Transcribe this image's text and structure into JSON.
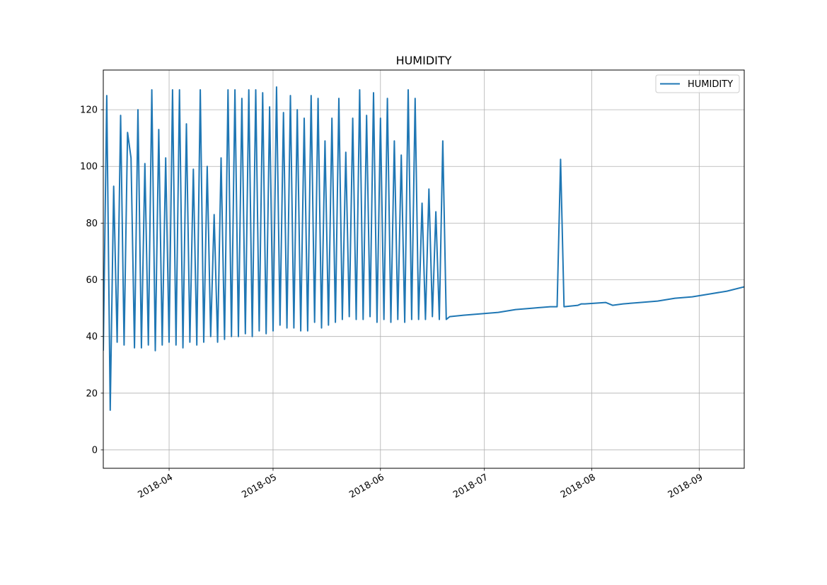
{
  "chart_data": {
    "type": "line",
    "title": "HUMIDITY",
    "xlabel": "",
    "ylabel": "",
    "xlim": [
      "2018-03-13",
      "2018-09-14"
    ],
    "ylim": [
      -6.5,
      134
    ],
    "grid": true,
    "legend": {
      "placement": "top-right",
      "entries": [
        "HUMIDITY"
      ]
    },
    "x_ticks": [
      {
        "date": "2018-04-01",
        "label": "2018-04"
      },
      {
        "date": "2018-05-01",
        "label": "2018-05"
      },
      {
        "date": "2018-06-01",
        "label": "2018-06"
      },
      {
        "date": "2018-07-01",
        "label": "2018-07"
      },
      {
        "date": "2018-08-01",
        "label": "2018-08"
      },
      {
        "date": "2018-09-01",
        "label": "2018-09"
      }
    ],
    "y_ticks": [
      0,
      20,
      40,
      60,
      80,
      100,
      120
    ],
    "series": [
      {
        "name": "HUMIDITY",
        "color": "#1f77b4",
        "x": [
          "2018-03-13",
          "2018-03-14",
          "2018-03-15",
          "2018-03-16",
          "2018-03-17",
          "2018-03-18",
          "2018-03-19",
          "2018-03-20",
          "2018-03-21",
          "2018-03-22",
          "2018-03-23",
          "2018-03-24",
          "2018-03-25",
          "2018-03-26",
          "2018-03-27",
          "2018-03-28",
          "2018-03-29",
          "2018-03-30",
          "2018-03-31",
          "2018-04-01",
          "2018-04-02",
          "2018-04-03",
          "2018-04-04",
          "2018-04-05",
          "2018-04-06",
          "2018-04-07",
          "2018-04-08",
          "2018-04-09",
          "2018-04-10",
          "2018-04-11",
          "2018-04-12",
          "2018-04-13",
          "2018-04-14",
          "2018-04-15",
          "2018-04-16",
          "2018-04-17",
          "2018-04-18",
          "2018-04-19",
          "2018-04-20",
          "2018-04-21",
          "2018-04-22",
          "2018-04-23",
          "2018-04-24",
          "2018-04-25",
          "2018-04-26",
          "2018-04-27",
          "2018-04-28",
          "2018-04-29",
          "2018-04-30",
          "2018-05-01",
          "2018-05-02",
          "2018-05-03",
          "2018-05-04",
          "2018-05-05",
          "2018-05-06",
          "2018-05-07",
          "2018-05-08",
          "2018-05-09",
          "2018-05-10",
          "2018-05-11",
          "2018-05-12",
          "2018-05-13",
          "2018-05-14",
          "2018-05-15",
          "2018-05-16",
          "2018-05-17",
          "2018-05-18",
          "2018-05-19",
          "2018-05-20",
          "2018-05-21",
          "2018-05-22",
          "2018-05-23",
          "2018-05-24",
          "2018-05-25",
          "2018-05-26",
          "2018-05-27",
          "2018-05-28",
          "2018-05-29",
          "2018-05-30",
          "2018-05-31",
          "2018-06-01",
          "2018-06-02",
          "2018-06-03",
          "2018-06-04",
          "2018-06-05",
          "2018-06-06",
          "2018-06-07",
          "2018-06-08",
          "2018-06-09",
          "2018-06-10",
          "2018-06-11",
          "2018-06-12",
          "2018-06-13",
          "2018-06-14",
          "2018-06-15",
          "2018-06-16",
          "2018-06-17",
          "2018-06-18",
          "2018-06-19",
          "2018-06-20",
          "2018-06-21",
          "2018-06-25",
          "2018-06-30",
          "2018-07-05",
          "2018-07-10",
          "2018-07-15",
          "2018-07-20",
          "2018-07-22",
          "2018-07-23",
          "2018-07-24",
          "2018-07-28",
          "2018-07-29",
          "2018-07-30",
          "2018-08-05",
          "2018-08-07",
          "2018-08-10",
          "2018-08-15",
          "2018-08-20",
          "2018-08-25",
          "2018-08-30",
          "2018-09-04",
          "2018-09-09",
          "2018-09-14"
        ],
        "y": [
          35,
          125,
          14,
          93,
          38,
          118,
          37,
          112,
          103,
          36,
          120,
          36,
          101,
          37,
          127,
          35,
          113,
          37,
          103,
          38,
          127,
          37,
          127,
          36,
          115,
          38,
          99,
          37,
          127,
          38,
          100,
          40,
          83,
          38,
          103,
          39,
          127,
          40,
          127,
          40,
          124,
          41,
          127,
          40,
          127,
          42,
          126,
          41,
          121,
          42,
          128,
          44,
          119,
          43,
          125,
          43,
          120,
          42,
          117,
          42,
          125,
          45,
          124,
          43,
          109,
          44,
          117,
          45,
          124,
          46,
          105,
          47,
          117,
          46,
          127,
          46,
          118,
          47,
          126,
          45,
          117,
          46,
          124,
          45,
          109,
          46,
          104,
          45,
          127,
          46,
          124,
          46,
          87,
          46,
          92,
          47,
          84,
          46,
          109,
          46,
          47,
          47.5,
          48,
          48.5,
          49.5,
          50,
          50.5,
          50.5,
          102.5,
          50.5,
          51,
          51.5,
          51.5,
          52,
          51,
          51.5,
          52,
          52.5,
          53.5,
          54,
          55,
          56,
          57.5
        ]
      }
    ]
  }
}
